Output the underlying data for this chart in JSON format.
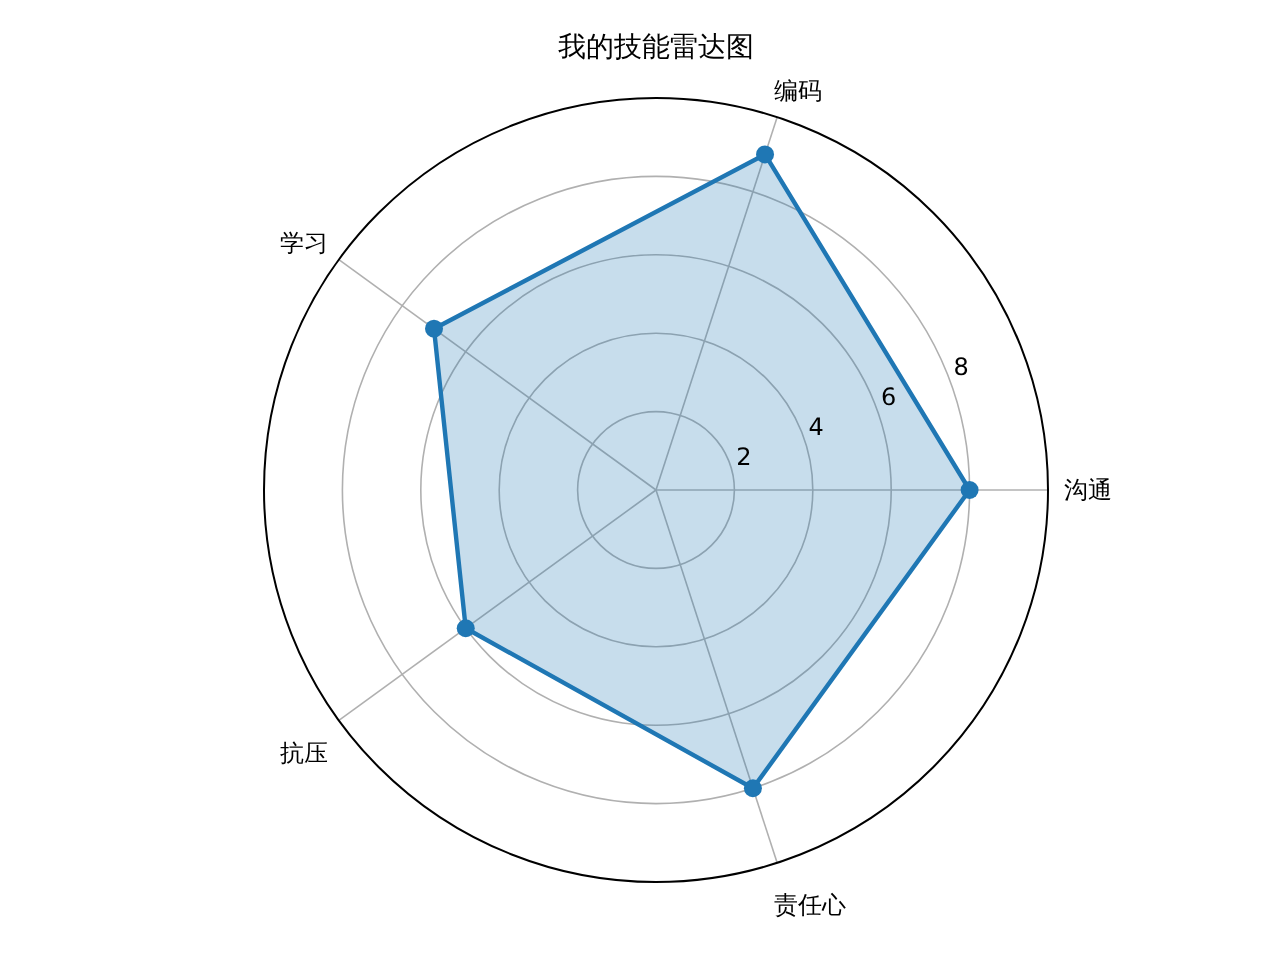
{
  "chart_data": {
    "type": "radar",
    "title": "我的技能雷达图",
    "categories": [
      "编码",
      "沟通",
      "责任心",
      "抗压",
      "学习"
    ],
    "series": [
      {
        "color": "#1f77b4",
        "values": [
          9,
          8,
          8,
          6,
          7
        ]
      }
    ],
    "ylim": [
      0,
      10
    ],
    "yticks": [
      2,
      4,
      6,
      8
    ],
    "grid": true,
    "marker": "circle"
  }
}
